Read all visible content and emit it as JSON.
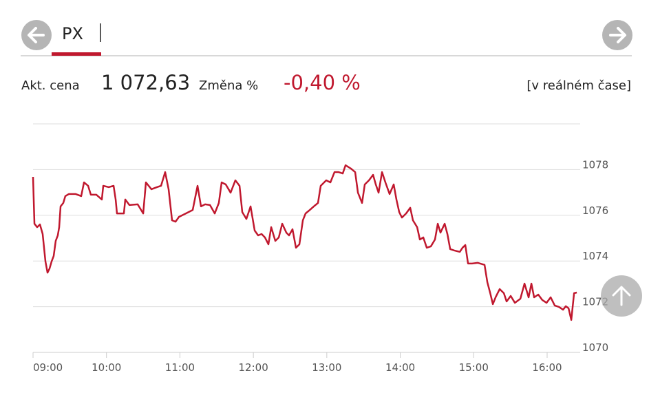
{
  "header": {
    "symbol": "PX"
  },
  "quote": {
    "price_label": "Akt. cena",
    "price": "1 072,63",
    "change_label": "Změna %",
    "change": "-0,40 %",
    "status": "[v reálném čase]"
  },
  "chart_data": {
    "type": "line",
    "color": "#c0182e",
    "grid": true,
    "xlim": [
      9,
      16.45
    ],
    "ylim": [
      1070,
      1080
    ],
    "xticks": [
      {
        "value": 9,
        "label": "09:00"
      },
      {
        "value": 10,
        "label": "10:00"
      },
      {
        "value": 11,
        "label": "11:00"
      },
      {
        "value": 12,
        "label": "12:00"
      },
      {
        "value": 13,
        "label": "13:00"
      },
      {
        "value": 14,
        "label": "14:00"
      },
      {
        "value": 15,
        "label": "15:00"
      },
      {
        "value": 16,
        "label": "16:00"
      }
    ],
    "yticks": [
      1070,
      1072,
      1074,
      1076,
      1078
    ],
    "x": [
      9.0,
      9.019,
      9.056,
      9.094,
      9.131,
      9.169,
      9.197,
      9.225,
      9.253,
      9.281,
      9.309,
      9.337,
      9.356,
      9.375,
      9.412,
      9.44,
      9.487,
      9.581,
      9.656,
      9.694,
      9.75,
      9.787,
      9.862,
      9.937,
      9.956,
      10.031,
      10.097,
      10.125,
      10.143,
      10.237,
      10.256,
      10.312,
      10.425,
      10.5,
      10.537,
      10.612,
      10.687,
      10.743,
      10.799,
      10.846,
      10.893,
      10.94,
      10.987,
      11.081,
      11.174,
      11.24,
      11.287,
      11.343,
      11.409,
      11.474,
      11.53,
      11.568,
      11.624,
      11.69,
      11.755,
      11.812,
      11.849,
      11.905,
      11.962,
      12.018,
      12.065,
      12.112,
      12.158,
      12.205,
      12.243,
      12.299,
      12.346,
      12.393,
      12.449,
      12.486,
      12.533,
      12.58,
      12.627,
      12.674,
      12.711,
      12.767,
      12.824,
      12.88,
      12.917,
      12.992,
      13.049,
      13.105,
      13.161,
      13.217,
      13.255,
      13.33,
      13.386,
      13.424,
      13.48,
      13.517,
      13.574,
      13.63,
      13.667,
      13.705,
      13.752,
      13.798,
      13.855,
      13.911,
      13.948,
      13.986,
      14.023,
      14.08,
      14.136,
      14.173,
      14.23,
      14.267,
      14.314,
      14.361,
      14.417,
      14.473,
      14.511,
      14.548,
      14.605,
      14.642,
      14.68,
      14.736,
      14.811,
      14.848,
      14.886,
      14.923,
      14.979,
      15.054,
      15.148,
      15.186,
      15.223,
      15.261,
      15.298,
      15.354,
      15.411,
      15.448,
      15.504,
      15.561,
      15.636,
      15.692,
      15.748,
      15.786,
      15.823,
      15.879,
      15.935,
      15.992,
      16.048,
      16.104,
      16.161,
      16.217,
      16.254,
      16.292,
      16.329,
      16.367,
      16.404
    ],
    "values": [
      1077.68,
      1075.63,
      1075.48,
      1075.6,
      1075.18,
      1073.98,
      1073.49,
      1073.67,
      1073.98,
      1074.22,
      1074.88,
      1075.12,
      1075.48,
      1076.39,
      1076.54,
      1076.84,
      1076.93,
      1076.93,
      1076.84,
      1077.44,
      1077.29,
      1076.9,
      1076.9,
      1076.69,
      1077.29,
      1077.23,
      1077.29,
      1076.69,
      1076.08,
      1076.08,
      1076.69,
      1076.45,
      1076.48,
      1076.08,
      1077.44,
      1077.14,
      1077.23,
      1077.29,
      1077.89,
      1077.14,
      1075.78,
      1075.72,
      1075.93,
      1076.08,
      1076.23,
      1077.29,
      1076.39,
      1076.48,
      1076.45,
      1076.08,
      1076.54,
      1077.44,
      1077.35,
      1076.99,
      1077.53,
      1077.29,
      1076.14,
      1075.84,
      1076.39,
      1075.33,
      1075.12,
      1075.18,
      1075.03,
      1074.73,
      1075.48,
      1074.88,
      1075.03,
      1075.63,
      1075.24,
      1075.12,
      1075.39,
      1074.58,
      1074.73,
      1075.78,
      1076.08,
      1076.23,
      1076.39,
      1076.54,
      1077.29,
      1077.53,
      1077.44,
      1077.89,
      1077.89,
      1077.83,
      1078.19,
      1078.04,
      1077.89,
      1076.99,
      1076.54,
      1077.35,
      1077.53,
      1077.77,
      1077.35,
      1076.99,
      1077.89,
      1077.44,
      1076.93,
      1077.35,
      1076.69,
      1076.14,
      1075.9,
      1076.08,
      1076.33,
      1075.78,
      1075.48,
      1074.94,
      1075.03,
      1074.58,
      1074.64,
      1074.94,
      1075.63,
      1075.24,
      1075.63,
      1075.18,
      1074.52,
      1074.46,
      1074.4,
      1074.58,
      1074.7,
      1073.89,
      1073.89,
      1073.92,
      1073.83,
      1073.07,
      1072.62,
      1072.11,
      1072.41,
      1072.77,
      1072.59,
      1072.23,
      1072.47,
      1072.17,
      1072.35,
      1073.01,
      1072.41,
      1073.01,
      1072.41,
      1072.53,
      1072.29,
      1072.17,
      1072.41,
      1072.05,
      1071.99,
      1071.87,
      1072.02,
      1071.93,
      1071.42,
      1072.59,
      1072.62
    ]
  }
}
